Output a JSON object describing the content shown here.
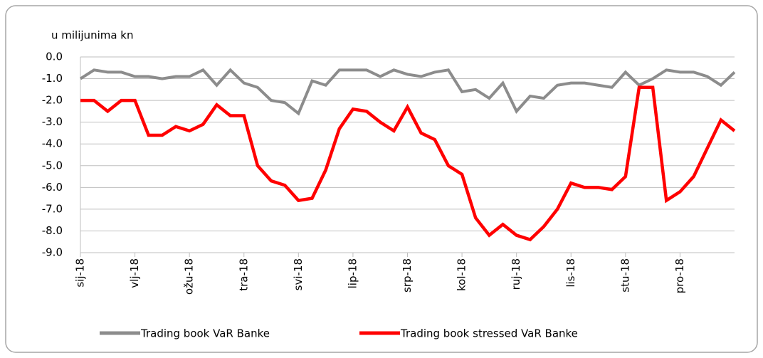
{
  "chart_data": {
    "type": "line",
    "y_axis_label": "u milijunima kn",
    "categories": [
      "sij-18",
      null,
      null,
      null,
      "vlj-18",
      null,
      null,
      null,
      "ožu-18",
      null,
      null,
      null,
      "tra-18",
      null,
      null,
      null,
      "svi-18",
      null,
      null,
      null,
      "lip-18",
      null,
      null,
      null,
      "srp-18",
      null,
      null,
      null,
      "kol-18",
      null,
      null,
      null,
      "ruj-18",
      null,
      null,
      null,
      "lis-18",
      null,
      null,
      null,
      "stu-18",
      null,
      null,
      null,
      "pro-18",
      null,
      null,
      null,
      null
    ],
    "series": [
      {
        "name": "Trading book VaR Banke",
        "color": "#8c8c8c",
        "values": [
          -1.0,
          -0.6,
          -0.7,
          -0.7,
          -0.9,
          -0.9,
          -1.0,
          -0.9,
          -0.9,
          -0.6,
          -1.3,
          -0.6,
          -1.2,
          -1.4,
          -2.0,
          -2.1,
          -2.6,
          -1.1,
          -1.3,
          -0.6,
          -0.6,
          -0.6,
          -0.9,
          -0.6,
          -0.8,
          -0.9,
          -0.7,
          -0.6,
          -1.6,
          -1.5,
          -1.9,
          -1.2,
          -2.5,
          -1.8,
          -1.9,
          -1.3,
          -1.2,
          -1.2,
          -1.3,
          -1.4,
          -0.7,
          -1.3,
          -1.0,
          -0.6,
          -0.7,
          -0.7,
          -0.9,
          -1.3,
          -0.7
        ]
      },
      {
        "name": "Trading book stressed VaR Banke",
        "color": "#ff0000",
        "values": [
          -2.0,
          -2.0,
          -2.5,
          -2.0,
          -2.0,
          -3.6,
          -3.6,
          -3.2,
          -3.4,
          -3.1,
          -2.2,
          -2.7,
          -2.7,
          -5.0,
          -5.7,
          -5.9,
          -6.6,
          -6.5,
          -5.2,
          -3.3,
          -2.4,
          -2.5,
          -3.0,
          -3.4,
          -2.3,
          -3.5,
          -3.8,
          -5.0,
          -5.4,
          -7.4,
          -8.2,
          -7.7,
          -8.2,
          -8.4,
          -7.8,
          -7.0,
          -5.8,
          -6.0,
          -6.0,
          -6.1,
          -5.5,
          -1.4,
          -1.4,
          -6.6,
          -6.2,
          -5.5,
          -4.2,
          -2.9,
          -3.4
        ]
      }
    ],
    "ylim": [
      -9,
      0
    ],
    "yticks": [
      {
        "value": 0,
        "label": "0.0"
      },
      {
        "value": -1,
        "label": "-1.0"
      },
      {
        "value": -2,
        "label": "-2.0"
      },
      {
        "value": -3,
        "label": "-3.0"
      },
      {
        "value": -4,
        "label": "-4.0"
      },
      {
        "value": -5,
        "label": "-5.0"
      },
      {
        "value": -6,
        "label": "-6.0"
      },
      {
        "value": -7,
        "label": "-7.0"
      },
      {
        "value": -8,
        "label": "-8.0"
      },
      {
        "value": -9,
        "label": "-9.0"
      }
    ],
    "grid": true
  }
}
